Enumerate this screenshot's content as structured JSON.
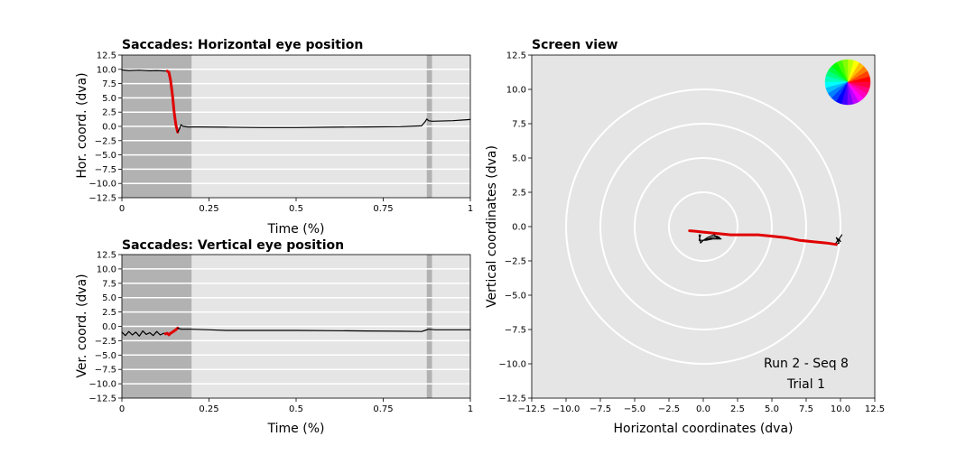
{
  "chart_data": [
    {
      "type": "line",
      "title": "Saccades: Horizontal eye position",
      "xlabel": "Time (%)",
      "ylabel": "Hor. coord. (dva)",
      "xlim": [
        0,
        1
      ],
      "ylim": [
        -12.5,
        12.5
      ],
      "xticks": [
        0,
        0.25,
        0.5,
        0.75,
        1
      ],
      "xtick_labels": [
        "0",
        "0.25",
        "0.5",
        "0.75",
        "1"
      ],
      "yticks": [
        12.5,
        10.0,
        7.5,
        5.0,
        2.5,
        0.0,
        -2.5,
        -5.0,
        -7.5,
        -10.0,
        -12.5
      ],
      "ytick_labels": [
        "12.5",
        "10.0",
        "7.5",
        "5.0",
        "2.5",
        "0.0",
        "−2.5",
        "−5.0",
        "−7.5",
        "−10.0",
        "−12.5"
      ],
      "grid": true,
      "shaded_intervals": [
        [
          0,
          0.2
        ],
        [
          0.875,
          0.89
        ]
      ],
      "series": [
        {
          "color": "#000000",
          "x": [
            0,
            0.02,
            0.05,
            0.08,
            0.1,
            0.125,
            0.13
          ],
          "y": [
            9.9,
            9.8,
            9.85,
            9.75,
            9.8,
            9.7,
            9.7
          ]
        },
        {
          "color": "#e00000",
          "x": [
            0.13,
            0.135,
            0.14,
            0.145,
            0.15,
            0.155,
            0.16
          ],
          "y": [
            9.7,
            9.5,
            8.0,
            5.5,
            2.5,
            0.3,
            -1.0
          ]
        },
        {
          "color": "#000000",
          "x": [
            0.16,
            0.165,
            0.17,
            0.175,
            0.19,
            0.22,
            0.3,
            0.4,
            0.5,
            0.6,
            0.7,
            0.8,
            0.86,
            0.87,
            0.875,
            0.88,
            0.89,
            0.95,
            1.0
          ],
          "y": [
            -1.0,
            -0.5,
            0.3,
            0.0,
            -0.1,
            -0.1,
            -0.15,
            -0.2,
            -0.2,
            -0.15,
            -0.1,
            -0.05,
            0.1,
            0.8,
            1.3,
            1.0,
            0.9,
            1.0,
            1.2
          ]
        }
      ]
    },
    {
      "type": "line",
      "title": "Saccades: Vertical eye position",
      "xlabel": "Time (%)",
      "ylabel": "Ver. coord. (dva)",
      "xlim": [
        0,
        1
      ],
      "ylim": [
        -12.5,
        12.5
      ],
      "xticks": [
        0,
        0.25,
        0.5,
        0.75,
        1
      ],
      "xtick_labels": [
        "0",
        "0.25",
        "0.5",
        "0.75",
        "1"
      ],
      "yticks": [
        12.5,
        10.0,
        7.5,
        5.0,
        2.5,
        0.0,
        -2.5,
        -5.0,
        -7.5,
        -10.0,
        -12.5
      ],
      "ytick_labels": [
        "12.5",
        "10.0",
        "7.5",
        "5.0",
        "2.5",
        "0.0",
        "−2.5",
        "−5.0",
        "−7.5",
        "−10.0",
        "−12.5"
      ],
      "grid": true,
      "shaded_intervals": [
        [
          0,
          0.2
        ],
        [
          0.875,
          0.89
        ]
      ],
      "series": [
        {
          "color": "#000000",
          "x": [
            0,
            0.01,
            0.02,
            0.03,
            0.04,
            0.05,
            0.06,
            0.07,
            0.08,
            0.09,
            0.1,
            0.11,
            0.12,
            0.125
          ],
          "y": [
            -1.0,
            -1.6,
            -0.9,
            -1.5,
            -1.0,
            -1.7,
            -0.8,
            -1.4,
            -1.1,
            -1.6,
            -0.9,
            -1.5,
            -1.2,
            -1.3
          ]
        },
        {
          "color": "#e00000",
          "x": [
            0.125,
            0.13,
            0.135,
            0.14,
            0.145,
            0.15,
            0.155,
            0.16
          ],
          "y": [
            -1.3,
            -1.2,
            -1.5,
            -1.2,
            -1.0,
            -0.8,
            -0.6,
            -0.3
          ]
        },
        {
          "color": "#000000",
          "x": [
            0.16,
            0.17,
            0.2,
            0.25,
            0.3,
            0.4,
            0.5,
            0.6,
            0.7,
            0.8,
            0.86,
            0.87,
            0.88,
            0.9,
            0.95,
            1.0
          ],
          "y": [
            -0.3,
            -0.5,
            -0.5,
            -0.6,
            -0.7,
            -0.7,
            -0.7,
            -0.75,
            -0.8,
            -0.85,
            -0.9,
            -0.7,
            -0.5,
            -0.6,
            -0.6,
            -0.6
          ]
        }
      ]
    },
    {
      "type": "line",
      "title": "Screen view",
      "xlabel": "Horizontal coordinates (dva)",
      "ylabel": "Vertical coordinates (dva)",
      "xlim": [
        -12.5,
        12.5
      ],
      "ylim": [
        -12.5,
        12.5
      ],
      "xticks": [
        -12.5,
        -10.0,
        -7.5,
        -5.0,
        -2.5,
        0.0,
        2.5,
        5.0,
        7.5,
        10.0,
        12.5
      ],
      "xtick_labels": [
        "−12.5",
        "−10.0",
        "−7.5",
        "−5.0",
        "−2.5",
        "0.0",
        "2.5",
        "5.0",
        "7.5",
        "10.0",
        "12.5"
      ],
      "yticks": [
        12.5,
        10.0,
        7.5,
        5.0,
        2.5,
        0.0,
        -2.5,
        -5.0,
        -7.5,
        -10.0,
        -12.5
      ],
      "ytick_labels": [
        "12.5",
        "10.0",
        "7.5",
        "5.0",
        "2.5",
        "0.0",
        "−2.5",
        "−5.0",
        "−7.5",
        "−10.0",
        "−12.5"
      ],
      "circles_radii": [
        2.5,
        5.0,
        7.5,
        10.0
      ],
      "series": [
        {
          "color": "#000000",
          "x": [
            10.1,
            9.9,
            10.0,
            9.7,
            9.9,
            9.6,
            9.8
          ],
          "y": [
            -0.6,
            -0.9,
            -1.1,
            -0.8,
            -1.2,
            -1.3,
            -1.0
          ]
        },
        {
          "color": "#e00000",
          "x": [
            9.7,
            9.0,
            8.0,
            7.0,
            6.0,
            5.0,
            4.0,
            3.0,
            2.0,
            1.0,
            0.0,
            -0.5,
            -1.0
          ],
          "y": [
            -1.3,
            -1.2,
            -1.1,
            -1.0,
            -0.8,
            -0.7,
            -0.6,
            -0.6,
            -0.6,
            -0.5,
            -0.4,
            -0.35,
            -0.3
          ]
        },
        {
          "color": "#000000",
          "x": [
            -0.3,
            -0.2,
            0.0,
            0.3,
            0.8,
            1.0,
            1.3,
            0.5,
            0.0,
            1.0,
            1.2,
            0.2,
            -0.3,
            -0.2
          ],
          "y": [
            -0.6,
            -1.2,
            -1.0,
            -0.8,
            -0.6,
            -0.8,
            -0.9,
            -0.9,
            -1.0,
            -0.7,
            -0.8,
            -1.0,
            -1.0,
            -0.6
          ]
        }
      ],
      "annotations": [
        "Run 2 - Seq 8",
        "Trial 1"
      ]
    }
  ]
}
